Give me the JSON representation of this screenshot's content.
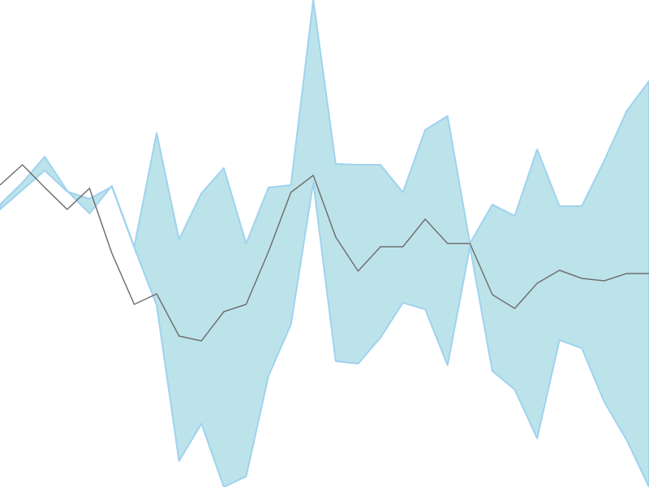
{
  "chart_data": {
    "type": "area",
    "title": "",
    "xlabel": "",
    "ylabel": "",
    "grid": false,
    "legend": "none",
    "colors": {
      "band_fill": "#bde3ea",
      "band_stroke": "#9fd2ef",
      "line": "#707070"
    },
    "x": [
      0,
      1,
      2,
      3,
      4,
      5,
      6,
      7,
      8,
      9,
      10,
      11,
      12,
      13,
      14,
      15,
      16,
      17,
      18,
      19,
      20,
      21,
      22,
      23,
      24,
      25,
      26,
      27,
      28,
      29
    ],
    "xlim": [
      0,
      29
    ],
    "ylim": [
      0,
      600
    ],
    "series": [
      {
        "role": "band-upper",
        "values": [
          348,
          375,
          407,
          365,
          337,
          371,
          296,
          436,
          305,
          362,
          393,
          300,
          369,
          372,
          600,
          398,
          397,
          397,
          363,
          440,
          457,
          300,
          348,
          334,
          416,
          346,
          346,
          402,
          463,
          500
        ]
      },
      {
        "role": "band-lower",
        "values": [
          342,
          366,
          390,
          364,
          355,
          370,
          295,
          224,
          32,
          78,
          0,
          13,
          137,
          200,
          375,
          155,
          152,
          184,
          227,
          219,
          150,
          296,
          143,
          120,
          60,
          181,
          171,
          105,
          58,
          0
        ]
      },
      {
        "role": "line",
        "values": [
          372,
          397,
          369,
          342,
          368,
          288,
          225,
          238,
          186,
          180,
          216,
          225,
          290,
          363,
          384,
          308,
          266,
          296,
          296,
          330,
          300,
          300,
          237,
          220,
          251,
          267,
          257,
          254,
          263,
          263
        ]
      }
    ]
  }
}
